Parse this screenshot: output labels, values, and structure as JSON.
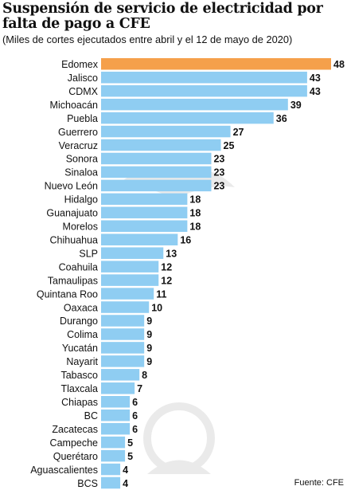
{
  "header": {
    "title": "Suspensión de servicio de electricidad por falta de pago a CFE",
    "subtitle": "(Miles de cortes ejecutados entre abril y el 12 de mayo de 2020)"
  },
  "footer": {
    "source": "Fuente: CFE"
  },
  "colors": {
    "highlight": "#f5a04b",
    "bar": "#8fcdf2"
  },
  "chart_data": {
    "type": "bar",
    "orientation": "horizontal",
    "title": "Suspensión de servicio de electricidad por falta de pago a CFE",
    "subtitle": "(Miles de cortes ejecutados entre abril y el 12 de mayo de 2020)",
    "categories": [
      "Edomex",
      "Jalisco",
      "CDMX",
      "Michoacán",
      "Puebla",
      "Guerrero",
      "Veracruz",
      "Sonora",
      "Sinaloa",
      "Nuevo León",
      "Hidalgo",
      "Guanajuato",
      "Morelos",
      "Chihuahua",
      "SLP",
      "Coahuila",
      "Tamaulipas",
      "Quintana Roo",
      "Oaxaca",
      "Durango",
      "Colima",
      "Yucatán",
      "Nayarit",
      "Tabasco",
      "Tlaxcala",
      "Chiapas",
      "BC",
      "Zacatecas",
      "Campeche",
      "Querétaro",
      "Aguascalientes",
      "BCS"
    ],
    "values": [
      48,
      43,
      43,
      39,
      36,
      27,
      25,
      23,
      23,
      23,
      18,
      18,
      18,
      16,
      13,
      12,
      12,
      11,
      10,
      9,
      9,
      9,
      9,
      8,
      7,
      6,
      6,
      6,
      5,
      5,
      4,
      4
    ],
    "highlight_index": 0,
    "xlim": [
      0,
      48
    ],
    "grid": false,
    "legend": "none"
  }
}
